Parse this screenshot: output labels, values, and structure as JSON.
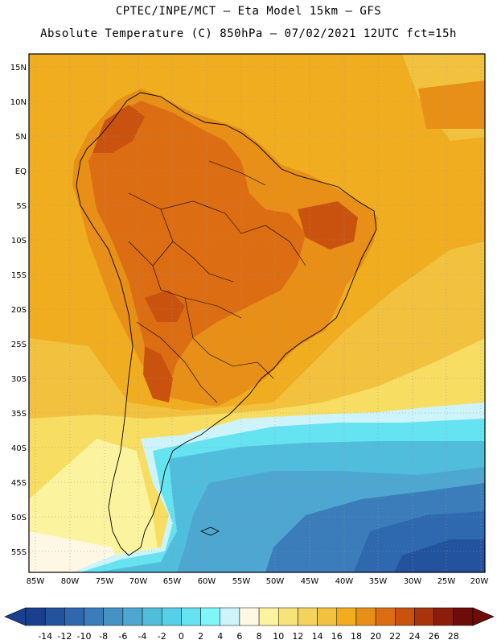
{
  "header": {
    "line1": "CPTEC/INPE/MCT –  Eta Model 15km – GFS",
    "line2": "Absolute Temperature (C) 850hPa – 07/02/2021 12UTC fct=15h"
  },
  "map": {
    "lat_labels": [
      "15N",
      "10N",
      "5N",
      "EQ",
      "5S",
      "10S",
      "15S",
      "20S",
      "25S",
      "30S",
      "35S",
      "40S",
      "45S",
      "50S",
      "55S"
    ],
    "lon_labels": [
      "85W",
      "80W",
      "75W",
      "70W",
      "65W",
      "60W",
      "55W",
      "50W",
      "45W",
      "40W",
      "35W",
      "30W",
      "25W",
      "20W"
    ],
    "colors": {
      "land_hot": "#d9781c",
      "land_very_hot": "#c65a16",
      "warm": "#ef9f1c",
      "mild": "#f2bd2e",
      "cool": "#f7dd62",
      "ocean_cold": "#4cc3e2",
      "ocean_colder": "#2e8dc4",
      "ocean_coldest": "#1f5ea6"
    }
  },
  "colorbar": {
    "labels": [
      "-14",
      "-12",
      "-10",
      "-8",
      "-6",
      "-4",
      "-2",
      "0",
      "2",
      "4",
      "6",
      "8",
      "10",
      "12",
      "14",
      "16",
      "18",
      "20",
      "22",
      "24",
      "26",
      "28"
    ],
    "colors": [
      "#1a3f8f",
      "#23539f",
      "#2e68ae",
      "#3a7dba",
      "#4592c5",
      "#4ea7d0",
      "#4fbddb",
      "#55d0e6",
      "#66e3f0",
      "#7ff6fa",
      "#cdf3fb",
      "#fdf7e3",
      "#fcf39e",
      "#f8e27a",
      "#f4d25c",
      "#f2c23e",
      "#f0ad1f",
      "#e78f16",
      "#dc6d12",
      "#c9520f",
      "#a9340c",
      "#8a1d0b",
      "#6d0d0a"
    ]
  }
}
